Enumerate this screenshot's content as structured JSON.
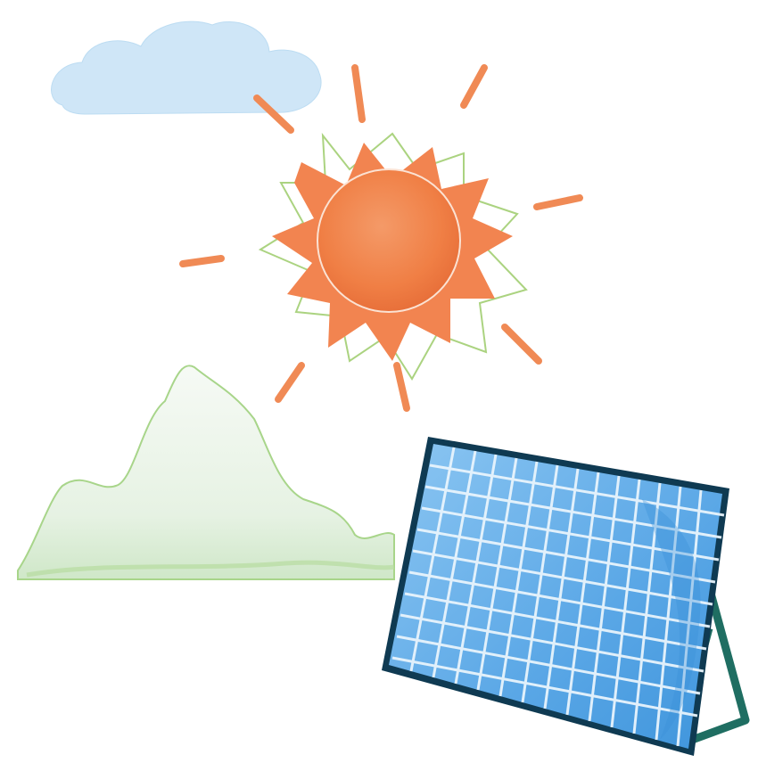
{
  "scene": {
    "elements": [
      "cloud",
      "sun",
      "mountain",
      "solar-panel"
    ],
    "colors": {
      "background": "#ffffff",
      "cloud": "#cfe6f7",
      "sun": "#f07f45",
      "sun_ray": "#f08a55",
      "sun_outline": "#9ccb6a",
      "mountain_fill": "#eef6ec",
      "mountain_outline": "#a8d58a",
      "panel_frame": "#0f3a52",
      "panel_cell": "#6fb3ea",
      "panel_grid": "#e8f4fc",
      "panel_stand": "#1f6e62"
    }
  }
}
